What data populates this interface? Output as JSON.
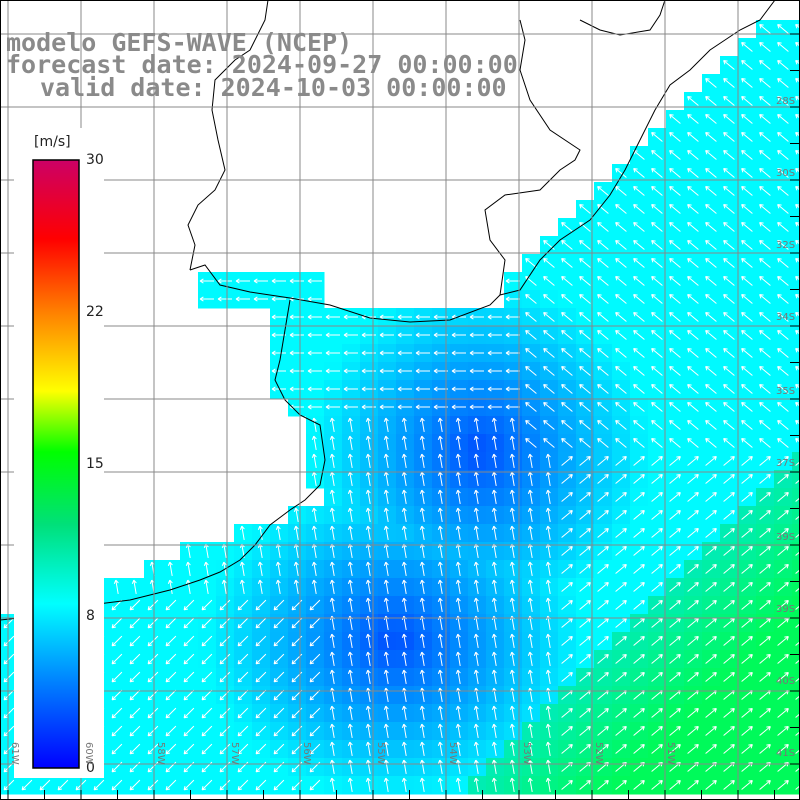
{
  "title": {
    "model": "modelo GEFS-WAVE (NCEP)",
    "forecast": "forecast date: 2024-09-27 00:00:00",
    "valid": "valid date: 2024-10-03 00:00:00"
  },
  "colorbar": {
    "unit": "[m/s]",
    "ticks": [
      "30",
      "22",
      "15",
      "8",
      "0"
    ],
    "tick_values": [
      30,
      22,
      15,
      8,
      0
    ],
    "colors": [
      "#0000ff",
      "#0080ff",
      "#00ffff",
      "#00ff00",
      "#ffff00",
      "#ff8000",
      "#ff0000",
      "#cc0066"
    ]
  },
  "lat_labels": [
    "28S",
    "30S",
    "32S",
    "34S",
    "35S",
    "37S",
    "39S",
    "39S",
    "40S",
    "41S"
  ],
  "lon_labels": [
    "61W",
    "60W",
    "58W",
    "57W",
    "56W",
    "55W",
    "54W",
    "53W",
    "52W",
    "51W"
  ],
  "colors": {
    "land": "#ffffff",
    "coast": "#000000",
    "grid": "#888888",
    "arrow": "#ffffff",
    "title": "#8a8a8a"
  }
}
